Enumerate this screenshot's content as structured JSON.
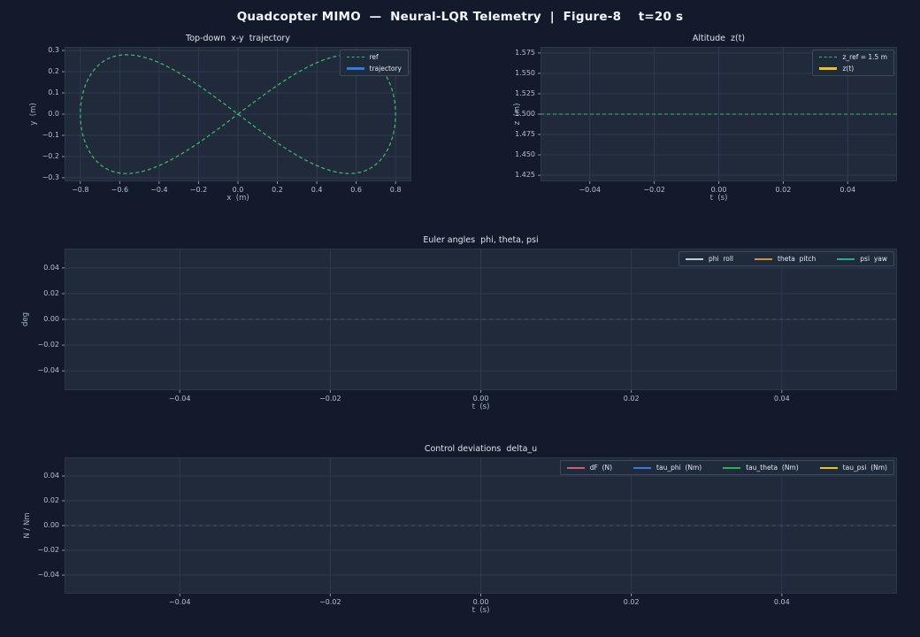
{
  "figure_title": "Quadcopter MIMO  —  Neural-LQR Telemetry  |  Figure-8    t=20 s",
  "colors": {
    "figure_bg": "#121a2b",
    "axes_bg": "#202a3a",
    "grid": "#2e3a4e",
    "spine": "#2c3748",
    "tick": "#9aa6b4",
    "tick_label": "#b6c0cc",
    "axis_label": "#a9b6c4",
    "title": "#dce4ec",
    "figure_title": "#f3f7fb",
    "legend_bg": "#1f2a3b",
    "legend_border": "#3c4a5e",
    "legend_text": "#e2e8ee",
    "zero_line": "#5c6b82",
    "ref_green": "#3cb371",
    "trajectory_blue": "#2e7de6",
    "z_gold": "#f0c020",
    "phi_gray": "#c4ccd6",
    "theta_tan": "#c8943f",
    "psi_teal": "#2faa8b",
    "dF_rose": "#c2636e",
    "tau_phi_blue": "#3b76e0",
    "tau_theta_green": "#2cb052",
    "tau_psi_yellow": "#f0c020"
  },
  "chart_data": [
    {
      "type": "line",
      "title": "Top-down  x-y  trajectory",
      "xlabel": "x  (m)",
      "ylabel": "y  (m)",
      "xlim": [
        -0.88,
        0.88
      ],
      "ylim": [
        -0.317,
        0.317
      ],
      "xticks": {
        "values": [
          -0.8,
          -0.6,
          -0.4,
          -0.2,
          0.0,
          0.2,
          0.4,
          0.6,
          0.8
        ],
        "labels": [
          "−0.8",
          "−0.6",
          "−0.4",
          "−0.2",
          "0.0",
          "0.2",
          "0.4",
          "0.6",
          "0.8"
        ]
      },
      "yticks": {
        "values": [
          0.3,
          0.2,
          0.1,
          0.0,
          -0.1,
          -0.2,
          -0.3
        ],
        "labels": [
          "0.3",
          "0.2",
          "0.1",
          "0.0",
          "−0.1",
          "−0.2",
          "−0.3"
        ]
      },
      "grid": true,
      "zero_line": false,
      "series": [
        {
          "name": "ref",
          "kind": "lissajous",
          "amp_x": 0.8,
          "amp_y": 0.28,
          "formula": "x = 0.8·sin(t), y = 0.28·sin(2t), t ∈ [0, 2π]",
          "color": "#3cb371",
          "dash": "4 3",
          "width": 1.3,
          "sample_points": {
            "x": [
              0,
              0.306,
              0.566,
              0.739,
              0.8,
              0.739,
              0.566,
              0.306,
              0,
              -0.306,
              -0.566,
              -0.739,
              -0.8,
              -0.739,
              -0.566,
              -0.306,
              0
            ],
            "y": [
              0,
              0.198,
              0.28,
              0.198,
              0,
              -0.198,
              -0.28,
              -0.198,
              0,
              0.198,
              0.28,
              0.198,
              0,
              -0.198,
              -0.28,
              -0.198,
              0
            ]
          }
        },
        {
          "name": "trajectory",
          "kind": "empty",
          "color": "#2e7de6",
          "width": 2.2
        }
      ],
      "legend": {
        "orientation": "vertical",
        "entries": [
          {
            "label": "ref",
            "color": "#3cb371",
            "dashed": true,
            "thick": false
          },
          {
            "label": "trajectory",
            "color": "#2e7de6",
            "dashed": false,
            "thick": true
          }
        ]
      }
    },
    {
      "type": "line",
      "title": "Altitude  z(t)",
      "xlabel": "t  (s)",
      "ylabel": "z  (m)",
      "xlim": [
        -0.0553,
        0.0553
      ],
      "ylim": [
        1.4175,
        1.5825
      ],
      "xticks": {
        "values": [
          -0.04,
          -0.02,
          0.0,
          0.02,
          0.04
        ],
        "labels": [
          "−0.04",
          "−0.02",
          "0.00",
          "0.02",
          "0.04"
        ]
      },
      "yticks": {
        "values": [
          1.575,
          1.55,
          1.525,
          1.5,
          1.475,
          1.45,
          1.425
        ],
        "labels": [
          "1.575",
          "1.550",
          "1.525",
          "1.500",
          "1.475",
          "1.450",
          "1.425"
        ]
      },
      "grid": true,
      "zero_line": false,
      "series": [
        {
          "name": "z_ref",
          "kind": "hline",
          "y": 1.5,
          "color": "#3cb371",
          "dash": "4 3",
          "width": 1.1
        },
        {
          "name": "z(t)",
          "kind": "empty",
          "color": "#f0c020",
          "width": 2.5
        }
      ],
      "legend": {
        "orientation": "vertical",
        "entries": [
          {
            "label": "z_ref = 1.5 m",
            "color": "#3cb371",
            "dashed": true,
            "thick": false
          },
          {
            "label": "z(t)",
            "color": "#f0c020",
            "dashed": false,
            "thick": true
          }
        ]
      }
    },
    {
      "type": "line",
      "title": "Euler angles  phi, theta, psi",
      "xlabel": "t  (s)",
      "ylabel": "deg",
      "xlim": [
        -0.0553,
        0.0553
      ],
      "ylim": [
        -0.055,
        0.055
      ],
      "xticks": {
        "values": [
          -0.04,
          -0.02,
          0.0,
          0.02,
          0.04
        ],
        "labels": [
          "−0.04",
          "−0.02",
          "0.00",
          "0.02",
          "0.04"
        ]
      },
      "yticks": {
        "values": [
          0.04,
          0.02,
          0.0,
          -0.02,
          -0.04
        ],
        "labels": [
          "0.04",
          "0.02",
          "0.00",
          "−0.02",
          "−0.04"
        ]
      },
      "grid": true,
      "zero_line": true,
      "series": [
        {
          "name": "phi",
          "kind": "empty",
          "color": "#c4ccd6",
          "width": 2
        },
        {
          "name": "theta",
          "kind": "empty",
          "color": "#c8943f",
          "width": 2
        },
        {
          "name": "psi",
          "kind": "empty",
          "color": "#2faa8b",
          "width": 2
        }
      ],
      "legend": {
        "orientation": "horizontal",
        "entries": [
          {
            "label": "phi  roll",
            "color": "#c4ccd6",
            "dashed": false,
            "thick": false
          },
          {
            "label": "theta  pitch",
            "color": "#c8943f",
            "dashed": false,
            "thick": false
          },
          {
            "label": "psi  yaw",
            "color": "#2faa8b",
            "dashed": false,
            "thick": false
          }
        ]
      }
    },
    {
      "type": "line",
      "title": "Control deviations  delta_u",
      "xlabel": "t  (s)",
      "ylabel": "N / Nm",
      "xlim": [
        -0.0553,
        0.0553
      ],
      "ylim": [
        -0.055,
        0.055
      ],
      "xticks": {
        "values": [
          -0.04,
          -0.02,
          0.0,
          0.02,
          0.04
        ],
        "labels": [
          "−0.04",
          "−0.02",
          "0.00",
          "0.02",
          "0.04"
        ]
      },
      "yticks": {
        "values": [
          0.04,
          0.02,
          0.0,
          -0.02,
          -0.04
        ],
        "labels": [
          "0.04",
          "0.02",
          "0.00",
          "−0.02",
          "−0.04"
        ]
      },
      "grid": true,
      "zero_line": true,
      "series": [
        {
          "name": "dF",
          "kind": "empty",
          "color": "#c2636e",
          "width": 2
        },
        {
          "name": "tau_phi",
          "kind": "empty",
          "color": "#3b76e0",
          "width": 2
        },
        {
          "name": "tau_theta",
          "kind": "empty",
          "color": "#2cb052",
          "width": 2
        },
        {
          "name": "tau_psi",
          "kind": "empty",
          "color": "#f0c020",
          "width": 2
        }
      ],
      "legend": {
        "orientation": "horizontal",
        "entries": [
          {
            "label": "dF  (N)",
            "color": "#c2636e",
            "dashed": false,
            "thick": false
          },
          {
            "label": "tau_phi  (Nm)",
            "color": "#3b76e0",
            "dashed": false,
            "thick": false
          },
          {
            "label": "tau_theta  (Nm)",
            "color": "#2cb052",
            "dashed": false,
            "thick": false
          },
          {
            "label": "tau_psi  (Nm)",
            "color": "#f0c020",
            "dashed": false,
            "thick": false
          }
        ]
      }
    }
  ]
}
